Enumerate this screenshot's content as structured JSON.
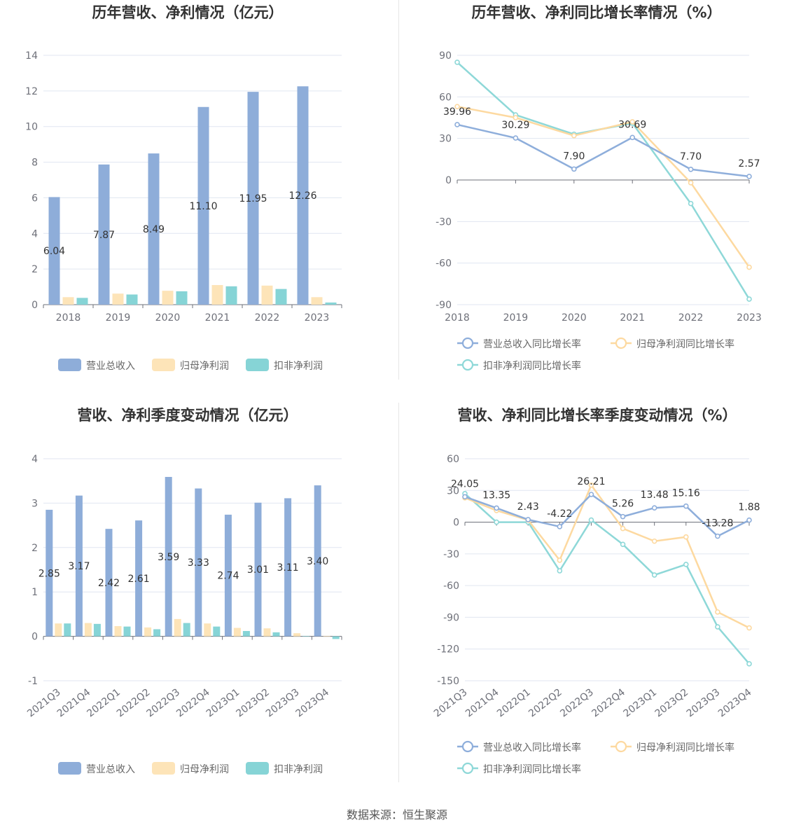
{
  "colors": {
    "revenue": "#8eadd9",
    "net_profit": "#fde4b8",
    "deducted_profit": "#86d4d6",
    "line_revenue": "#8eaedb",
    "line_net": "#fdd9a0",
    "line_deducted": "#8ed8d8"
  },
  "chart_data": [
    {
      "type": "bar",
      "title": "历年营收、净利情况（亿元）",
      "categories": [
        "2018",
        "2019",
        "2020",
        "2021",
        "2022",
        "2023"
      ],
      "ylim": [
        0,
        14
      ],
      "yticks": [
        0,
        2,
        4,
        6,
        8,
        10,
        12,
        14
      ],
      "series": [
        {
          "name": "营业总收入",
          "values": [
            6.04,
            7.87,
            8.49,
            11.1,
            11.95,
            12.26
          ],
          "labels": [
            "6.04",
            "7.87",
            "8.49",
            "11.10",
            "11.95",
            "12.26"
          ]
        },
        {
          "name": "归母净利润",
          "values": [
            0.42,
            0.62,
            0.78,
            1.1,
            1.07,
            0.42
          ]
        },
        {
          "name": "扣非净利润",
          "values": [
            0.38,
            0.57,
            0.75,
            1.03,
            0.88,
            0.12
          ]
        }
      ]
    },
    {
      "type": "line",
      "title": "历年营收、净利同比增长率情况（%）",
      "categories": [
        "2018",
        "2019",
        "2020",
        "2021",
        "2022",
        "2023"
      ],
      "ylim": [
        -90,
        90
      ],
      "yticks": [
        -90,
        -60,
        -30,
        0,
        30,
        60,
        90
      ],
      "series": [
        {
          "name": "营业总收入同比增长率",
          "values": [
            39.96,
            30.29,
            7.9,
            30.69,
            7.7,
            2.57
          ],
          "labels": [
            "39.96",
            "30.29",
            "7.90",
            "30.69",
            "7.70",
            "2.57"
          ]
        },
        {
          "name": "归母净利润同比增长率",
          "values": [
            53,
            45,
            32,
            42,
            -2,
            -63
          ]
        },
        {
          "name": "扣非净利润同比增长率",
          "values": [
            85,
            47,
            33,
            41,
            -17,
            -86
          ]
        }
      ]
    },
    {
      "type": "bar",
      "title": "营收、净利季度变动情况（亿元）",
      "categories": [
        "2021Q3",
        "2021Q4",
        "2022Q1",
        "2022Q2",
        "2022Q3",
        "2022Q4",
        "2023Q1",
        "2023Q2",
        "2023Q3",
        "2023Q4"
      ],
      "ylim": [
        -1,
        4
      ],
      "yticks": [
        -1,
        0,
        1,
        2,
        3,
        4
      ],
      "series": [
        {
          "name": "营业总收入",
          "values": [
            2.85,
            3.17,
            2.42,
            2.61,
            3.59,
            3.33,
            2.74,
            3.01,
            3.11,
            3.4
          ],
          "labels": [
            "2.85",
            "3.17",
            "2.42",
            "2.61",
            "3.59",
            "3.33",
            "2.74",
            "3.01",
            "3.11",
            "3.40"
          ]
        },
        {
          "name": "归母净利润",
          "values": [
            0.29,
            0.3,
            0.23,
            0.2,
            0.39,
            0.29,
            0.19,
            0.18,
            0.07,
            0.01
          ]
        },
        {
          "name": "扣非净利润",
          "values": [
            0.29,
            0.28,
            0.22,
            0.16,
            0.3,
            0.22,
            0.12,
            0.09,
            0.01,
            -0.06
          ]
        }
      ]
    },
    {
      "type": "line",
      "title": "营收、净利同比增长率季度变动情况（%）",
      "categories": [
        "2021Q3",
        "2021Q4",
        "2022Q1",
        "2022Q2",
        "2022Q3",
        "2022Q4",
        "2023Q1",
        "2023Q2",
        "2023Q3",
        "2023Q4"
      ],
      "ylim": [
        -150,
        60
      ],
      "yticks": [
        -150,
        -120,
        -90,
        -60,
        -30,
        0,
        30,
        60
      ],
      "series": [
        {
          "name": "营业总收入同比增长率",
          "values": [
            24.05,
            13.35,
            2.43,
            -4.22,
            26.21,
            5.26,
            13.48,
            15.16,
            -13.28,
            1.88
          ],
          "labels": [
            "24.05",
            "13.35",
            "2.43",
            "-4.22",
            "26.21",
            "5.26",
            "13.48",
            "15.16",
            "-13.28",
            "1.88"
          ]
        },
        {
          "name": "归母净利润同比增长率",
          "values": [
            23,
            11,
            2,
            -36,
            35,
            -6,
            -18,
            -14,
            -85,
            -100
          ]
        },
        {
          "name": "扣非净利润同比增长率",
          "values": [
            27,
            0,
            0,
            -46,
            2,
            -21,
            -50,
            -40,
            -99,
            -134
          ]
        }
      ]
    }
  ],
  "source": "数据来源：恒生聚源"
}
